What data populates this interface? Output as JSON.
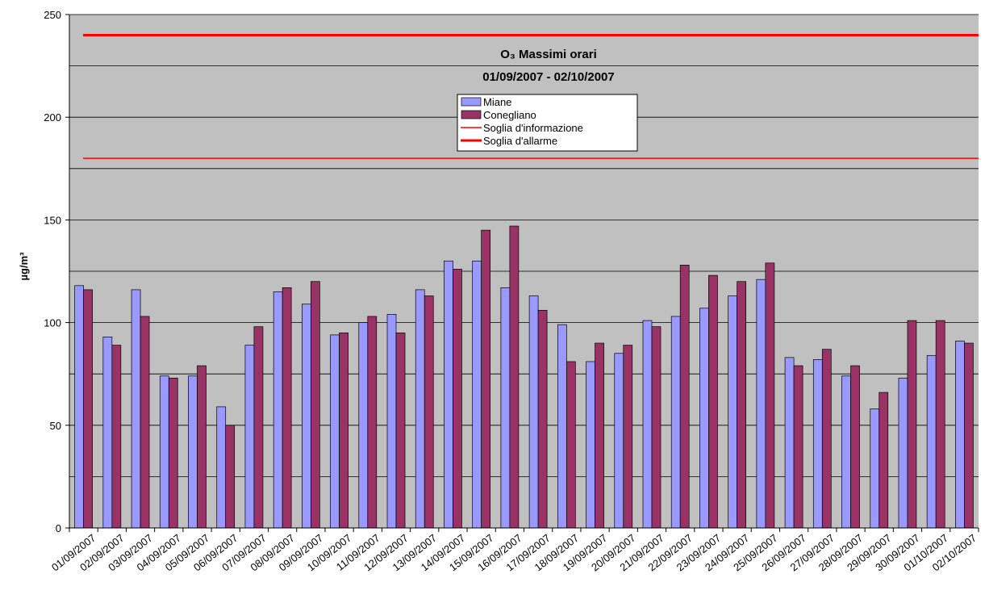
{
  "chart_data": {
    "type": "bar",
    "title": "O₃ Massimi orari",
    "subtitle": "01/09/2007 - 02/10/2007",
    "y_label": "µg/m³",
    "categories": [
      "01/09/2007",
      "02/09/2007",
      "03/09/2007",
      "04/09/2007",
      "05/09/2007",
      "06/09/2007",
      "07/09/2007",
      "08/09/2007",
      "09/09/2007",
      "10/09/2007",
      "11/09/2007",
      "12/09/2007",
      "13/09/2007",
      "14/09/2007",
      "15/09/2007",
      "16/09/2007",
      "17/09/2007",
      "18/09/2007",
      "19/09/2007",
      "20/09/2007",
      "21/09/2007",
      "22/09/2007",
      "23/09/2007",
      "24/09/2007",
      "25/09/2007",
      "26/09/2007",
      "27/09/2007",
      "28/09/2007",
      "29/09/2007",
      "30/09/2007",
      "01/10/2007",
      "02/10/2007"
    ],
    "series": [
      {
        "name": "Miane",
        "type": "bar",
        "color": "#9999ff",
        "values": [
          118,
          93,
          116,
          74,
          74,
          59,
          89,
          115,
          109,
          94,
          100,
          104,
          116,
          130,
          130,
          117,
          113,
          99,
          81,
          85,
          101,
          103,
          107,
          113,
          121,
          83,
          82,
          74,
          58,
          73,
          84,
          91
        ]
      },
      {
        "name": "Conegliano",
        "type": "bar",
        "color": "#993366",
        "values": [
          116,
          89,
          103,
          73,
          79,
          50,
          98,
          117,
          120,
          95,
          103,
          95,
          113,
          126,
          145,
          147,
          106,
          81,
          90,
          89,
          98,
          128,
          123,
          120,
          129,
          79,
          87,
          79,
          66,
          101,
          101,
          90
        ]
      },
      {
        "name": "Soglia d'informazione",
        "type": "line",
        "color": "#ff0000",
        "width": 1.5,
        "values": [
          180,
          180,
          180,
          180,
          180,
          180,
          180,
          180,
          180,
          180,
          180,
          180,
          180,
          180,
          180,
          180,
          180,
          180,
          180,
          180,
          180,
          180,
          180,
          180,
          180,
          180,
          180,
          180,
          180,
          180,
          180,
          180
        ]
      },
      {
        "name": "Soglia d'allarme",
        "type": "line",
        "color": "#ff0000",
        "width": 3,
        "values": [
          240,
          240,
          240,
          240,
          240,
          240,
          240,
          240,
          240,
          240,
          240,
          240,
          240,
          240,
          240,
          240,
          240,
          240,
          240,
          240,
          240,
          240,
          240,
          240,
          240,
          240,
          240,
          240,
          240,
          240,
          240,
          240
        ]
      }
    ],
    "ylim": [
      0,
      250
    ],
    "yticks": [
      0,
      50,
      100,
      150,
      200,
      250
    ],
    "y_minor_ticks": [
      25,
      75,
      125,
      175,
      225
    ],
    "grid": true,
    "background": "#c0c0c0"
  }
}
